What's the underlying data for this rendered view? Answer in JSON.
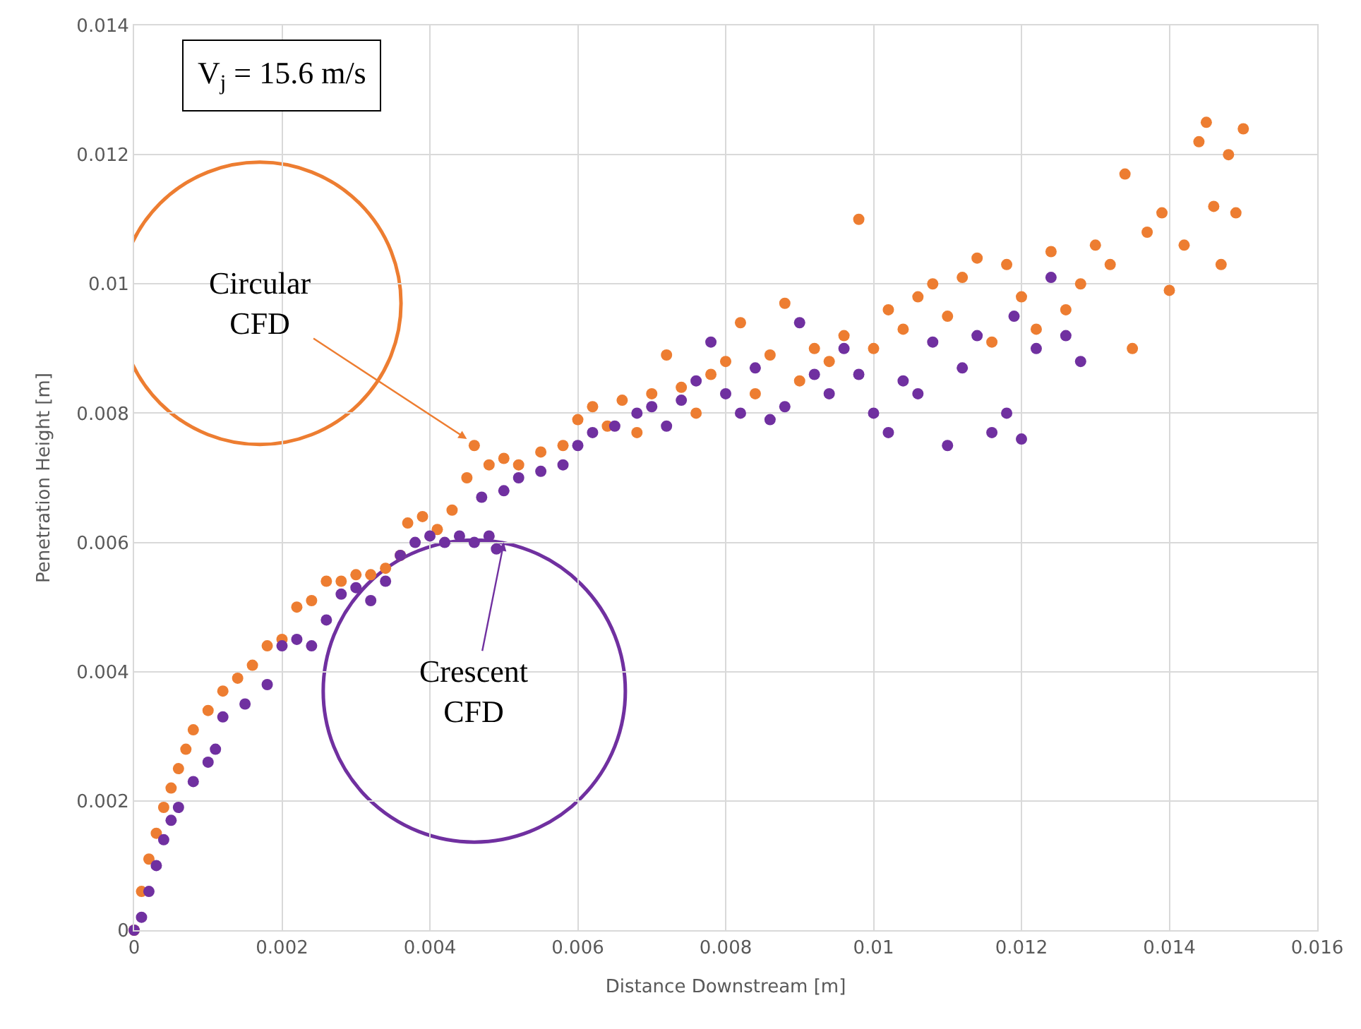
{
  "chart_data": {
    "type": "scatter",
    "xlabel": "Distance Downstream [m]",
    "ylabel": "Penetration Height [m]",
    "xlim": [
      0,
      0.016
    ],
    "xticks": [
      0,
      0.002,
      0.004,
      0.006,
      0.008,
      0.01,
      0.012,
      0.014,
      0.016
    ],
    "ylim": [
      0,
      0.014
    ],
    "yticks": [
      0,
      0.002,
      0.004,
      0.006,
      0.008,
      0.01,
      0.012,
      0.014
    ],
    "grid": true,
    "marker": "circle",
    "annotations": [
      "V$_{j}$ = 15.6 m/s",
      {
        "text": "Circular\nCFD",
        "x": 0.0045,
        "y": 0.0076
      },
      {
        "text": "Crescent\nCFD",
        "x": 0.005,
        "y": 0.006
      }
    ],
    "series": [
      {
        "color": "#ed7d31",
        "x": [
          0,
          0.0001,
          0.0002,
          0.0003,
          0.0004,
          0.0005,
          0.0006,
          0.0007,
          0.0008,
          0.001,
          0.0012,
          0.0014,
          0.0016,
          0.0018,
          0.002,
          0.0022,
          0.0024,
          0.0026,
          0.0028,
          0.003,
          0.0032,
          0.0034,
          0.0036,
          0.0037,
          0.0039,
          0.0041,
          0.0043,
          0.0045,
          0.0046,
          0.0048,
          0.005,
          0.0052,
          0.0055,
          0.0058,
          0.006,
          0.0062,
          0.0064,
          0.0066,
          0.0068,
          0.007,
          0.0072,
          0.0074,
          0.0076,
          0.0078,
          0.008,
          0.0082,
          0.0084,
          0.0086,
          0.0088,
          0.009,
          0.0092,
          0.0094,
          0.0096,
          0.0098,
          0.01,
          0.0102,
          0.0104,
          0.0106,
          0.0108,
          0.011,
          0.0112,
          0.0114,
          0.0116,
          0.0118,
          0.012,
          0.0122,
          0.0124,
          0.0126,
          0.0128,
          0.013,
          0.0132,
          0.0134,
          0.0135,
          0.0137,
          0.0139,
          0.014,
          0.0142,
          0.0144,
          0.0145,
          0.0146,
          0.0147,
          0.0148,
          0.0149,
          0.015
        ],
        "values": [
          0,
          0.0006,
          0.0011,
          0.0015,
          0.0019,
          0.0022,
          0.0025,
          0.0028,
          0.0031,
          0.0034,
          0.0037,
          0.0039,
          0.0041,
          0.0044,
          0.0045,
          0.005,
          0.0051,
          0.0054,
          0.0054,
          0.0055,
          0.0055,
          0.0056,
          0.0058,
          0.0063,
          0.0064,
          0.0062,
          0.0065,
          0.007,
          0.0075,
          0.0072,
          0.0073,
          0.0072,
          0.0074,
          0.0075,
          0.0079,
          0.0081,
          0.0078,
          0.0082,
          0.0077,
          0.0083,
          0.0089,
          0.0084,
          0.008,
          0.0086,
          0.0088,
          0.0094,
          0.0083,
          0.0089,
          0.0097,
          0.0085,
          0.009,
          0.0088,
          0.0092,
          0.011,
          0.009,
          0.0096,
          0.0093,
          0.0098,
          0.01,
          0.0095,
          0.0101,
          0.0104,
          0.0091,
          0.0103,
          0.0098,
          0.0093,
          0.0105,
          0.0096,
          0.01,
          0.0106,
          0.0103,
          0.0117,
          0.009,
          0.0108,
          0.0111,
          0.0099,
          0.0106,
          0.0122,
          0.0125,
          0.0112,
          0.0103,
          0.012,
          0.0111,
          0.0124
        ]
      },
      {
        "color": "#7030a0",
        "x": [
          0,
          0.0001,
          0.0002,
          0.0003,
          0.0004,
          0.0005,
          0.0006,
          0.0008,
          0.001,
          0.0011,
          0.0012,
          0.0015,
          0.0018,
          0.002,
          0.0022,
          0.0024,
          0.0026,
          0.0028,
          0.003,
          0.0032,
          0.0034,
          0.0036,
          0.0038,
          0.004,
          0.0042,
          0.0044,
          0.0046,
          0.0048,
          0.0049,
          0.0047,
          0.005,
          0.0052,
          0.0055,
          0.0058,
          0.006,
          0.0062,
          0.0065,
          0.0068,
          0.007,
          0.0072,
          0.0074,
          0.0076,
          0.0078,
          0.008,
          0.0082,
          0.0084,
          0.0086,
          0.0088,
          0.009,
          0.0092,
          0.0094,
          0.0096,
          0.0098,
          0.01,
          0.0102,
          0.0104,
          0.0106,
          0.0108,
          0.011,
          0.0112,
          0.0114,
          0.0116,
          0.0118,
          0.012,
          0.0119,
          0.0122,
          0.0124,
          0.0126,
          0.0128
        ],
        "values": [
          0,
          0.0002,
          0.0006,
          0.001,
          0.0014,
          0.0017,
          0.0019,
          0.0023,
          0.0026,
          0.0028,
          0.0033,
          0.0035,
          0.0038,
          0.0044,
          0.0045,
          0.0044,
          0.0048,
          0.0052,
          0.0053,
          0.0051,
          0.0054,
          0.0058,
          0.006,
          0.0061,
          0.006,
          0.0061,
          0.006,
          0.0061,
          0.0059,
          0.0067,
          0.0068,
          0.007,
          0.0071,
          0.0072,
          0.0075,
          0.0077,
          0.0078,
          0.008,
          0.0081,
          0.0078,
          0.0082,
          0.0085,
          0.0091,
          0.0083,
          0.008,
          0.0087,
          0.0079,
          0.0081,
          0.0094,
          0.0086,
          0.0083,
          0.009,
          0.0086,
          0.008,
          0.0077,
          0.0085,
          0.0083,
          0.0091,
          0.0075,
          0.0087,
          0.0092,
          0.0077,
          0.008,
          0.0076,
          0.0095,
          0.009,
          0.0101,
          0.0092,
          0.0088
        ]
      }
    ]
  }
}
